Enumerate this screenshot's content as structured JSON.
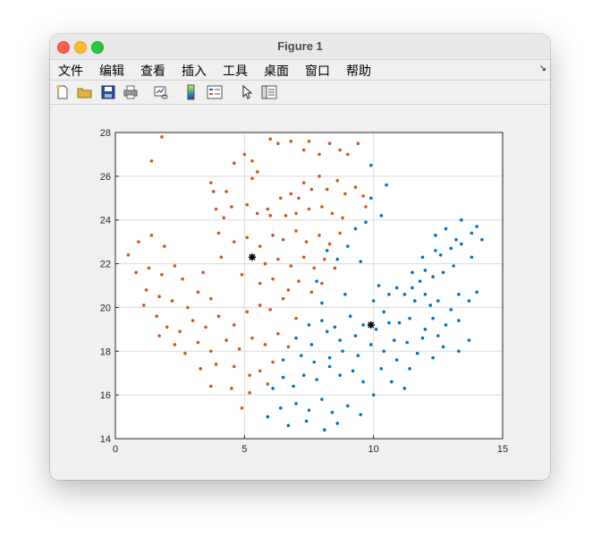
{
  "window": {
    "title": "Figure 1"
  },
  "menu": {
    "items": [
      "文件",
      "编辑",
      "查看",
      "插入",
      "工具",
      "桌面",
      "窗口",
      "帮助"
    ]
  },
  "toolbar": {
    "icons": [
      "new-figure-icon",
      "open-file-icon",
      "save-icon",
      "print-icon",
      "link-plot-icon",
      "insert-colorbar-icon",
      "insert-legend-icon",
      "pointer-icon",
      "property-editor-icon"
    ]
  },
  "chart_data": {
    "type": "scatter",
    "xlim": [
      0,
      15
    ],
    "ylim": [
      14,
      28
    ],
    "x_ticks": [
      0,
      5,
      10,
      15
    ],
    "y_ticks": [
      14,
      16,
      18,
      20,
      22,
      24,
      26,
      28
    ],
    "grid": true,
    "colors": {
      "series1": "#d95319",
      "series2": "#0072bd",
      "centroids": "#000000"
    },
    "series": [
      {
        "values": [
          [
            1.8,
            27.8
          ],
          [
            1.4,
            26.7
          ],
          [
            4.3,
            25.3
          ],
          [
            4.6,
            26.6
          ],
          [
            5.0,
            27.0
          ],
          [
            5.3,
            25.9
          ],
          [
            5.5,
            26.2
          ],
          [
            5.3,
            26.7
          ],
          [
            6.0,
            27.7
          ],
          [
            6.3,
            27.5
          ],
          [
            6.8,
            27.6
          ],
          [
            7.3,
            27.2
          ],
          [
            7.5,
            27.6
          ],
          [
            7.9,
            27.0
          ],
          [
            8.3,
            27.5
          ],
          [
            8.7,
            27.2
          ],
          [
            9.0,
            27.0
          ],
          [
            9.4,
            27.5
          ],
          [
            3.8,
            25.3
          ],
          [
            3.7,
            25.7
          ],
          [
            4.5,
            24.6
          ],
          [
            4.2,
            24.1
          ],
          [
            3.9,
            24.5
          ],
          [
            5.1,
            24.7
          ],
          [
            5.5,
            24.3
          ],
          [
            5.9,
            24.5
          ],
          [
            6.4,
            25.0
          ],
          [
            6.8,
            25.2
          ],
          [
            7.1,
            25.0
          ],
          [
            7.3,
            25.7
          ],
          [
            7.6,
            25.4
          ],
          [
            7.9,
            26.0
          ],
          [
            8.2,
            25.4
          ],
          [
            8.6,
            25.8
          ],
          [
            8.9,
            25.2
          ],
          [
            9.3,
            25.5
          ],
          [
            9.6,
            25.1
          ],
          [
            9.7,
            24.6
          ],
          [
            6.0,
            24.2
          ],
          [
            6.6,
            24.2
          ],
          [
            7.0,
            24.3
          ],
          [
            7.5,
            24.5
          ],
          [
            8.0,
            24.6
          ],
          [
            8.4,
            24.3
          ],
          [
            8.8,
            24.1
          ],
          [
            4.0,
            23.4
          ],
          [
            4.6,
            23.0
          ],
          [
            5.1,
            23.2
          ],
          [
            5.6,
            22.8
          ],
          [
            6.1,
            23.3
          ],
          [
            6.5,
            23.1
          ],
          [
            7.0,
            23.5
          ],
          [
            7.4,
            23.0
          ],
          [
            7.9,
            23.3
          ],
          [
            8.3,
            22.9
          ],
          [
            8.7,
            23.4
          ],
          [
            5.3,
            22.3
          ],
          [
            5.8,
            22.0
          ],
          [
            6.3,
            22.2
          ],
          [
            6.8,
            21.9
          ],
          [
            7.3,
            22.3
          ],
          [
            7.7,
            21.8
          ],
          [
            8.1,
            22.2
          ],
          [
            8.5,
            21.8
          ],
          [
            4.1,
            22.3
          ],
          [
            3.4,
            21.6
          ],
          [
            4.9,
            21.5
          ],
          [
            5.6,
            21.1
          ],
          [
            6.1,
            21.3
          ],
          [
            6.7,
            20.8
          ],
          [
            7.1,
            21.2
          ],
          [
            7.6,
            20.7
          ],
          [
            8.0,
            21.1
          ],
          [
            0.5,
            22.4
          ],
          [
            0.9,
            23.0
          ],
          [
            1.4,
            23.3
          ],
          [
            1.9,
            22.8
          ],
          [
            0.8,
            21.6
          ],
          [
            1.3,
            21.8
          ],
          [
            1.8,
            21.5
          ],
          [
            2.3,
            21.9
          ],
          [
            2.6,
            21.3
          ],
          [
            1.2,
            20.8
          ],
          [
            1.7,
            20.5
          ],
          [
            2.2,
            20.3
          ],
          [
            2.8,
            20.0
          ],
          [
            3.2,
            20.7
          ],
          [
            3.7,
            20.4
          ],
          [
            1.1,
            20.1
          ],
          [
            1.6,
            19.6
          ],
          [
            2.0,
            19.1
          ],
          [
            2.5,
            18.9
          ],
          [
            3.0,
            19.4
          ],
          [
            3.5,
            19.1
          ],
          [
            4.0,
            19.6
          ],
          [
            4.6,
            19.2
          ],
          [
            5.1,
            19.8
          ],
          [
            5.6,
            20.1
          ],
          [
            6.0,
            19.9
          ],
          [
            6.5,
            20.4
          ],
          [
            7.0,
            19.5
          ],
          [
            1.7,
            18.7
          ],
          [
            2.3,
            18.3
          ],
          [
            2.7,
            17.9
          ],
          [
            3.2,
            18.4
          ],
          [
            3.7,
            18.0
          ],
          [
            4.3,
            18.5
          ],
          [
            4.8,
            18.1
          ],
          [
            5.3,
            18.6
          ],
          [
            5.8,
            18.3
          ],
          [
            6.3,
            18.8
          ],
          [
            6.7,
            18.2
          ],
          [
            3.3,
            17.2
          ],
          [
            3.9,
            17.4
          ],
          [
            4.6,
            17.3
          ],
          [
            5.2,
            16.9
          ],
          [
            5.6,
            17.1
          ],
          [
            6.1,
            17.5
          ],
          [
            3.7,
            16.4
          ],
          [
            4.5,
            16.3
          ],
          [
            5.2,
            16.1
          ],
          [
            4.9,
            15.4
          ],
          [
            5.9,
            16.5
          ]
        ]
      },
      {
        "values": [
          [
            9.9,
            26.5
          ],
          [
            10.5,
            25.6
          ],
          [
            9.9,
            25.0
          ],
          [
            10.3,
            24.2
          ],
          [
            9.7,
            23.9
          ],
          [
            9.3,
            23.6
          ],
          [
            9.0,
            22.8
          ],
          [
            8.6,
            22.2
          ],
          [
            8.2,
            22.6
          ],
          [
            7.8,
            21.2
          ],
          [
            8.0,
            20.2
          ],
          [
            8.9,
            20.6
          ],
          [
            9.5,
            22.1
          ],
          [
            10.0,
            20.3
          ],
          [
            10.4,
            19.8
          ],
          [
            10.9,
            20.9
          ],
          [
            11.2,
            20.6
          ],
          [
            11.6,
            20.3
          ],
          [
            12.0,
            20.6
          ],
          [
            12.2,
            20.1
          ],
          [
            12.5,
            20.3
          ],
          [
            13.0,
            19.9
          ],
          [
            13.3,
            20.6
          ],
          [
            13.7,
            20.3
          ],
          [
            14.0,
            20.7
          ],
          [
            11.0,
            19.3
          ],
          [
            11.4,
            19.5
          ],
          [
            12.0,
            19.0
          ],
          [
            12.3,
            19.5
          ],
          [
            12.8,
            19.2
          ],
          [
            13.3,
            19.4
          ],
          [
            12.5,
            18.7
          ],
          [
            11.9,
            18.6
          ],
          [
            11.3,
            18.4
          ],
          [
            10.8,
            18.5
          ],
          [
            10.4,
            18.0
          ],
          [
            10.9,
            17.6
          ],
          [
            11.4,
            17.2
          ],
          [
            11.7,
            17.9
          ],
          [
            12.3,
            17.7
          ],
          [
            12.7,
            18.2
          ],
          [
            13.3,
            18.0
          ],
          [
            13.7,
            18.5
          ],
          [
            10.3,
            17.2
          ],
          [
            10.7,
            16.6
          ],
          [
            11.2,
            16.3
          ],
          [
            10.0,
            16.0
          ],
          [
            9.6,
            16.6
          ],
          [
            9.2,
            17.1
          ],
          [
            8.7,
            16.9
          ],
          [
            8.3,
            17.3
          ],
          [
            7.8,
            16.7
          ],
          [
            7.3,
            16.9
          ],
          [
            6.9,
            16.4
          ],
          [
            6.5,
            16.8
          ],
          [
            6.1,
            16.3
          ],
          [
            6.4,
            15.4
          ],
          [
            7.0,
            15.6
          ],
          [
            7.5,
            15.3
          ],
          [
            8.0,
            15.8
          ],
          [
            8.4,
            15.2
          ],
          [
            9.0,
            15.5
          ],
          [
            9.5,
            15.1
          ],
          [
            6.7,
            14.6
          ],
          [
            7.4,
            14.8
          ],
          [
            8.1,
            14.4
          ],
          [
            8.6,
            14.7
          ],
          [
            5.9,
            15.0
          ],
          [
            6.5,
            17.6
          ],
          [
            7.2,
            17.8
          ],
          [
            7.7,
            17.5
          ],
          [
            8.3,
            17.7
          ],
          [
            8.8,
            18.0
          ],
          [
            9.4,
            17.8
          ],
          [
            9.9,
            18.3
          ],
          [
            7.0,
            18.6
          ],
          [
            7.6,
            18.3
          ],
          [
            8.2,
            18.9
          ],
          [
            8.7,
            18.5
          ],
          [
            9.3,
            18.7
          ],
          [
            7.5,
            19.2
          ],
          [
            8.0,
            19.4
          ],
          [
            8.5,
            19.1
          ],
          [
            9.1,
            19.6
          ],
          [
            9.6,
            19.2
          ],
          [
            10.1,
            19.0
          ],
          [
            10.6,
            19.3
          ],
          [
            11.8,
            21.2
          ],
          [
            12.3,
            21.4
          ],
          [
            12.7,
            21.6
          ],
          [
            13.1,
            21.9
          ],
          [
            11.5,
            20.9
          ],
          [
            12.0,
            21.7
          ],
          [
            12.6,
            22.4
          ],
          [
            13.0,
            22.7
          ],
          [
            13.4,
            22.9
          ],
          [
            13.8,
            22.3
          ],
          [
            13.2,
            23.1
          ],
          [
            13.8,
            23.4
          ],
          [
            12.8,
            23.6
          ],
          [
            13.4,
            24.0
          ],
          [
            14.0,
            23.7
          ],
          [
            14.2,
            23.1
          ],
          [
            12.4,
            23.3
          ],
          [
            11.9,
            22.3
          ],
          [
            12.4,
            22.6
          ],
          [
            11.5,
            21.6
          ],
          [
            10.2,
            21.0
          ],
          [
            10.6,
            20.6
          ]
        ]
      },
      {
        "values": [
          [
            5.3,
            22.3
          ],
          [
            9.9,
            19.2
          ]
        ]
      }
    ]
  }
}
